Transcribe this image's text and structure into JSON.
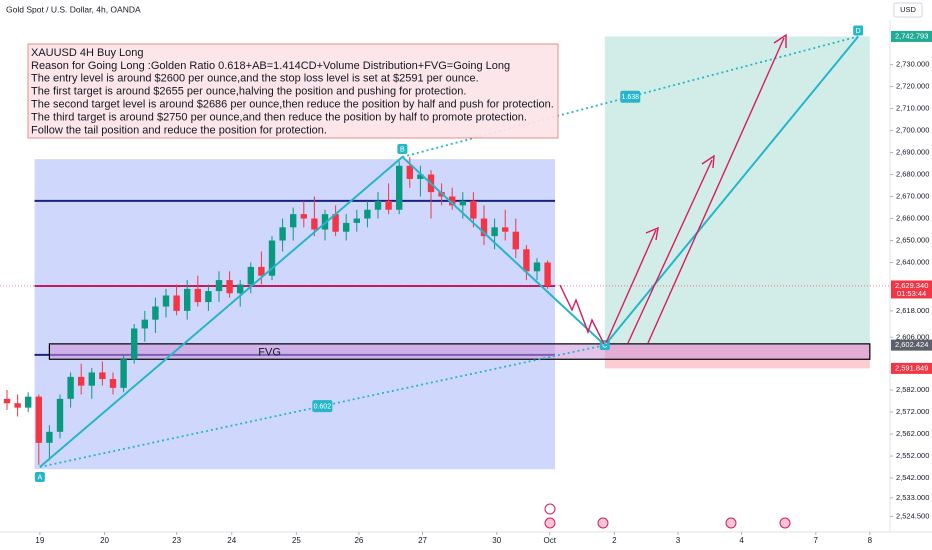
{
  "chart_data": {
    "type": "candlestick",
    "title": "Gold Spot / U.S. Dollar, 4h, OANDA",
    "currency": "USD",
    "up_color": "#089981",
    "down_color": "#f23645",
    "ylim": [
      2522,
      2748
    ],
    "xlim": [
      0,
      83
    ],
    "yticks": [
      {
        "value": 2730,
        "label": "2,730.000"
      },
      {
        "value": 2720,
        "label": "2,720.000"
      },
      {
        "value": 2710,
        "label": "2,710.000"
      },
      {
        "value": 2700,
        "label": "2,700.000"
      },
      {
        "value": 2690,
        "label": "2,690.000"
      },
      {
        "value": 2680,
        "label": "2,680.000"
      },
      {
        "value": 2670,
        "label": "2,670.000"
      },
      {
        "value": 2660,
        "label": "2,660.000"
      },
      {
        "value": 2650,
        "label": "2,650.000"
      },
      {
        "value": 2640,
        "label": "2,640.000"
      },
      {
        "value": 2618,
        "label": "2,618.000"
      },
      {
        "value": 2606,
        "label": "2,606.000"
      },
      {
        "value": 2582,
        "label": "2,582.000"
      },
      {
        "value": 2572,
        "label": "2,572.000"
      },
      {
        "value": 2562,
        "label": "2,562.000"
      },
      {
        "value": 2552,
        "label": "2,552.000"
      },
      {
        "value": 2542,
        "label": "2,542.000"
      },
      {
        "value": 2533,
        "label": "2,533.000"
      },
      {
        "value": 2524.5,
        "label": "2,524.500"
      }
    ],
    "xticks": [
      {
        "value": 3.1,
        "label": "19"
      },
      {
        "value": 9.2,
        "label": "20"
      },
      {
        "value": 16,
        "label": "23"
      },
      {
        "value": 21.2,
        "label": "24"
      },
      {
        "value": 27.3,
        "label": "25"
      },
      {
        "value": 33.2,
        "label": "26"
      },
      {
        "value": 39.2,
        "label": "27"
      },
      {
        "value": 46.2,
        "label": "30"
      },
      {
        "value": 51.2,
        "label": "Oct"
      },
      {
        "value": 57.3,
        "label": "2"
      },
      {
        "value": 63.3,
        "label": "3"
      },
      {
        "value": 69.3,
        "label": "4"
      },
      {
        "value": 76.3,
        "label": "7"
      },
      {
        "value": 81.4,
        "label": "8"
      }
    ],
    "series": {
      "open": [
        2578,
        2576,
        2574,
        2579,
        2558,
        2563,
        2578,
        2588,
        2584,
        2590,
        2587,
        2583,
        2596,
        2610,
        2614,
        2620,
        2625,
        2618,
        2628,
        2622,
        2627,
        2632,
        2626,
        2630,
        2638,
        2634,
        2650,
        2656,
        2662,
        2660,
        2655,
        2662,
        2654,
        2658,
        2660,
        2664,
        2668,
        2664,
        2684,
        2678,
        2680,
        2672,
        2670,
        2666,
        2668,
        2660,
        2652,
        2656,
        2654,
        2646,
        2636,
        2640
      ],
      "high": [
        2582,
        2580,
        2581,
        2580,
        2566,
        2580,
        2590,
        2594,
        2592,
        2595,
        2590,
        2598,
        2612,
        2618,
        2624,
        2628,
        2630,
        2632,
        2634,
        2630,
        2636,
        2636,
        2632,
        2640,
        2645,
        2652,
        2660,
        2665,
        2668,
        2670,
        2664,
        2666,
        2662,
        2664,
        2668,
        2672,
        2676,
        2686,
        2688,
        2684,
        2682,
        2676,
        2674,
        2672,
        2672,
        2666,
        2660,
        2664,
        2660,
        2648,
        2642,
        2641
      ],
      "low": [
        2573,
        2570,
        2572,
        2548,
        2550,
        2560,
        2574,
        2580,
        2578,
        2584,
        2580,
        2581,
        2594,
        2604,
        2608,
        2615,
        2616,
        2614,
        2620,
        2618,
        2622,
        2624,
        2620,
        2626,
        2630,
        2632,
        2645,
        2650,
        2656,
        2652,
        2650,
        2652,
        2650,
        2654,
        2656,
        2660,
        2662,
        2662,
        2674,
        2670,
        2660,
        2666,
        2664,
        2660,
        2656,
        2648,
        2646,
        2650,
        2642,
        2632,
        2632,
        2628
      ],
      "close": [
        2576,
        2574,
        2579,
        2558,
        2563,
        2578,
        2588,
        2584,
        2590,
        2587,
        2583,
        2596,
        2610,
        2614,
        2620,
        2625,
        2618,
        2628,
        2622,
        2627,
        2632,
        2626,
        2630,
        2638,
        2634,
        2650,
        2656,
        2662,
        2660,
        2655,
        2662,
        2654,
        2658,
        2660,
        2664,
        2668,
        2664,
        2684,
        2678,
        2680,
        2672,
        2670,
        2666,
        2668,
        2660,
        2652,
        2656,
        2654,
        2646,
        2636,
        2640,
        2629.34
      ]
    },
    "price_labels": [
      {
        "value": 2742.793,
        "label": "2,742.793",
        "color": "#22ab94"
      },
      {
        "value": 2629.34,
        "label": "2,629.340",
        "color": "#f23645",
        "countdown": "01:53:44"
      },
      {
        "value": 2602.424,
        "label": "2,602.424",
        "color": "#5d606b"
      },
      {
        "value": 2591.849,
        "label": "2,591.849",
        "color": "#f23645"
      }
    ],
    "levels": [
      {
        "value": 2668,
        "color": "#1a237e"
      },
      {
        "value": 2629.34,
        "color": "#c2185b"
      },
      {
        "value": 2598,
        "color": "#1a237e"
      }
    ],
    "range_box": {
      "from": 2.6,
      "to": 51.7,
      "top": 2687,
      "bottom": 2546
    },
    "fvg": {
      "label": "FVG",
      "from": 4,
      "to": 81.4,
      "top": 2603,
      "bottom": 2596
    },
    "target_zone": {
      "from": 56.4,
      "to": 81.4,
      "top": 2742.793,
      "entry": 2602.424,
      "stop": 2591.849
    },
    "pattern": [
      {
        "label": "A",
        "index": 3.1,
        "price": 2547
      },
      {
        "label": "B",
        "index": 37.3,
        "price": 2688
      },
      {
        "label": "C",
        "index": 56.4,
        "price": 2602.424
      },
      {
        "label": "D",
        "index": 80.3,
        "price": 2742.793
      }
    ],
    "ratios": [
      {
        "label": "0.602",
        "from": 0,
        "to": 2
      },
      {
        "label": "1.638",
        "from": 1,
        "to": 3
      }
    ],
    "annotation": [
      "XAUUSD 4H Buy Long",
      "Reason for Going Long :Golden Ratio 0.618+AB=1.414CD+Volume Distribution+FVG=Going Long",
      "The entry level is around $2600 per ounce,and the stop loss level is set at $2591 per ounce.",
      "The first target is around $2655 per ounce,halving the position and pushing for protection.",
      "The second target level is around $2686 per ounce,then reduce the position by half and push for protection.",
      "The third target is around $2750 per ounce,and then reduce the position by half to promote protection.",
      "Follow the tail position and reduce the position for protection."
    ]
  }
}
